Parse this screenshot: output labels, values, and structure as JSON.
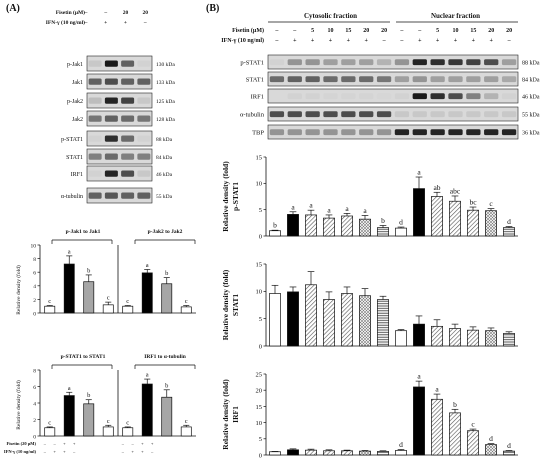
{
  "panel_a": {
    "label": "(A)",
    "treat_rows": [
      {
        "name": "Fisetin (μM)",
        "values": [
          "–",
          "–",
          "20",
          "20"
        ]
      },
      {
        "name": "IFN-γ (10 ng/ml)",
        "values": [
          "–",
          "+",
          "+",
          "–"
        ]
      }
    ],
    "blots": [
      {
        "name": "p-Jak1",
        "kda": "130 kDa"
      },
      {
        "name": "Jak1",
        "kda": "133 kDa"
      },
      {
        "name": "p-Jak2",
        "kda": "125 kDa"
      },
      {
        "name": "Jak2",
        "kda": "128 kDa"
      },
      {
        "name": "p-STAT1",
        "kda": "88 kDa"
      },
      {
        "name": "STAT1",
        "kda": "84 kDa"
      },
      {
        "name": "IRF1",
        "kda": "46 kDa"
      },
      {
        "name": "α-tubulin",
        "kda": "55 kDa"
      }
    ],
    "bottom_rows": [
      {
        "name": "Fisetin (20 μM)",
        "values": [
          "–",
          "–",
          "+",
          "+",
          "–",
          "–",
          "+",
          "+"
        ]
      },
      {
        "name": "IFN-γ (10 ng/ml)",
        "values": [
          "–",
          "+",
          "+",
          "–",
          "–",
          "+",
          "+",
          "–"
        ]
      }
    ]
  },
  "panel_b": {
    "label": "(B)",
    "fraction_labels": [
      "Cytosolic fraction",
      "Nuclear fraction"
    ],
    "treat_rows": [
      {
        "name": "Fisetin (μM)",
        "values": [
          "–",
          "–",
          "5",
          "10",
          "15",
          "20",
          "20",
          "–",
          "–",
          "5",
          "10",
          "15",
          "20",
          "20"
        ]
      },
      {
        "name": "IFN-γ (10 ng/ml)",
        "values": [
          "–",
          "+",
          "+",
          "+",
          "+",
          "+",
          "–",
          "–",
          "+",
          "+",
          "+",
          "+",
          "+",
          "–"
        ]
      }
    ],
    "blots": [
      {
        "name": "p-STAT1",
        "kda": "88 kDa"
      },
      {
        "name": "STAT1",
        "kda": "84 kDa"
      },
      {
        "name": "IRF1",
        "kda": "46 kDa"
      },
      {
        "name": "α-tubulin",
        "kda": "55 kDa"
      },
      {
        "name": "TBP",
        "kda": "36 kDa"
      }
    ]
  },
  "chart_data": [
    {
      "type": "bar",
      "title": "p-Jak1 to Jak1",
      "ylabel": "Relative density (fold)",
      "ylim": [
        0,
        10
      ],
      "yticks": [
        0,
        2,
        4,
        6,
        8,
        10
      ],
      "values": [
        1.0,
        7.2,
        4.6,
        1.2
      ],
      "errors": [
        0.1,
        1.2,
        1.0,
        0.4
      ],
      "letters": [
        "c",
        "a",
        "b",
        "c"
      ]
    },
    {
      "type": "bar",
      "title": "p-Jak2 to Jak2",
      "ylabel": "",
      "ylim": [
        0,
        10
      ],
      "yticks": [],
      "values": [
        1.0,
        5.9,
        4.3,
        0.9
      ],
      "errors": [
        0.1,
        0.5,
        0.9,
        0.2
      ],
      "letters": [
        "c",
        "a",
        "b",
        "c"
      ]
    },
    {
      "type": "bar",
      "title": "p-STAT1 to STAT1",
      "ylabel": "Relative density (fold)",
      "ylim": [
        0,
        8
      ],
      "yticks": [
        0,
        2,
        4,
        6,
        8
      ],
      "values": [
        1.0,
        4.9,
        3.9,
        1.1
      ],
      "errors": [
        0.1,
        0.4,
        0.5,
        0.2
      ],
      "letters": [
        "c",
        "a",
        "b",
        "c"
      ]
    },
    {
      "type": "bar",
      "title": "IRF1 to α-tubulin",
      "ylabel": "",
      "ylim": [
        0,
        8
      ],
      "yticks": [],
      "values": [
        1.0,
        6.3,
        4.7,
        1.1
      ],
      "errors": [
        0.1,
        0.6,
        0.9,
        0.2
      ],
      "letters": [
        "c",
        "a",
        "b",
        "c"
      ]
    },
    {
      "type": "bar",
      "ylabel": "Relative density (fold)",
      "ylabel2": "p-STAT1",
      "ylim": [
        0,
        15
      ],
      "yticks": [
        0,
        5,
        10,
        15
      ],
      "values": [
        1.0,
        4.1,
        4.0,
        3.4,
        3.8,
        3.2,
        1.6,
        1.5,
        9.0,
        7.5,
        6.6,
        4.9,
        4.8,
        1.6
      ],
      "errors": [
        0.1,
        0.5,
        0.9,
        0.6,
        0.5,
        0.7,
        0.4,
        0.2,
        2.2,
        0.8,
        1.0,
        0.6,
        0.4,
        0.2
      ],
      "letters": [
        "b",
        "a",
        "a",
        "a",
        "a",
        "a",
        "b",
        "d",
        "a",
        "ab",
        "abc",
        "bc",
        "c",
        "d"
      ]
    },
    {
      "type": "bar",
      "ylabel": "Relative density (fold)",
      "ylabel2": "STAT1",
      "ylim": [
        0,
        15
      ],
      "yticks": [
        0,
        5,
        10,
        15
      ],
      "values": [
        9.6,
        9.9,
        11.2,
        8.5,
        9.6,
        9.2,
        8.5,
        2.8,
        4.0,
        3.6,
        3.2,
        2.9,
        2.8,
        2.3
      ],
      "errors": [
        1.5,
        0.9,
        2.4,
        1.4,
        1.2,
        1.3,
        0.6,
        0.2,
        1.5,
        1.2,
        0.8,
        0.6,
        0.5,
        0.3
      ],
      "letters": [
        "",
        "",
        "",
        "",
        "",
        "",
        "",
        "",
        "",
        "",
        "",
        "",
        "",
        ""
      ]
    },
    {
      "type": "bar",
      "ylabel": "Relative density (fold)",
      "ylabel2": "IRF1",
      "ylim": [
        0,
        25
      ],
      "yticks": [
        0,
        5,
        10,
        15,
        20,
        25
      ],
      "values": [
        1.0,
        1.6,
        1.5,
        1.3,
        1.3,
        1.2,
        1.1,
        1.4,
        21.0,
        17.2,
        13.0,
        7.5,
        3.2,
        1.2
      ],
      "errors": [
        0.1,
        0.3,
        0.3,
        0.3,
        0.2,
        0.2,
        0.2,
        0.3,
        1.8,
        1.6,
        1.1,
        0.5,
        0.3,
        0.2
      ],
      "letters": [
        "",
        "",
        "",
        "",
        "",
        "",
        "",
        "d",
        "a",
        "a",
        "b",
        "c",
        "d",
        "d"
      ]
    }
  ]
}
